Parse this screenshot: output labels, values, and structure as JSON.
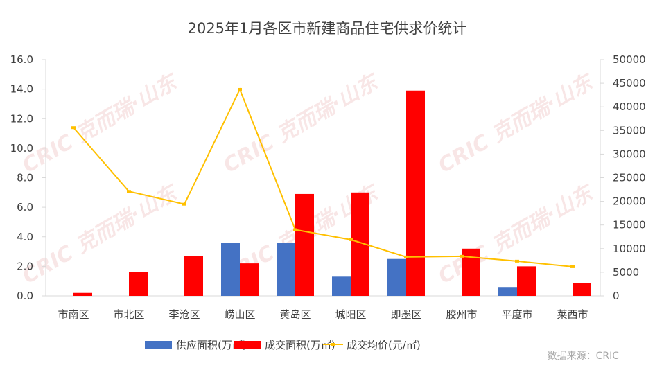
{
  "chart_data": {
    "type": "bar",
    "title": "2025年1月各区市新建商品住宅供求价统计",
    "categories": [
      "市南区",
      "市北区",
      "李沧区",
      "崂山区",
      "黄岛区",
      "城阳区",
      "即墨区",
      "胶州市",
      "平度市",
      "莱西市"
    ],
    "series": [
      {
        "name": "供应面积(万㎡)",
        "type": "bar",
        "axis": "left",
        "color": "#4472C4",
        "values": [
          0,
          0,
          0,
          3.6,
          3.6,
          1.3,
          2.5,
          0,
          0.6,
          0
        ]
      },
      {
        "name": "成交面积(万㎡)",
        "type": "bar",
        "axis": "left",
        "color": "#FF0000",
        "values": [
          0.2,
          1.6,
          2.7,
          2.2,
          6.9,
          7.0,
          13.9,
          3.2,
          2.0,
          0.85
        ]
      },
      {
        "name": "成交均价(元/㎡)",
        "type": "line",
        "axis": "right",
        "color": "#FFC000",
        "values": [
          35600,
          22100,
          19400,
          43700,
          14000,
          11900,
          8230,
          8380,
          7350,
          6170
        ]
      }
    ],
    "left_axis": {
      "ylim": [
        0,
        16
      ],
      "ticks": [
        "0.0",
        "2.0",
        "4.0",
        "6.0",
        "8.0",
        "10.0",
        "12.0",
        "14.0",
        "16.0"
      ]
    },
    "right_axis": {
      "ylim": [
        0,
        50000
      ],
      "ticks": [
        "0",
        "5000",
        "10000",
        "15000",
        "20000",
        "25000",
        "30000",
        "35000",
        "40000",
        "45000",
        "50000"
      ]
    },
    "legend_placement": "bottom",
    "grid": false,
    "source": "数据来源：CRIC",
    "watermark": "CRIC 克而瑞·山东"
  }
}
